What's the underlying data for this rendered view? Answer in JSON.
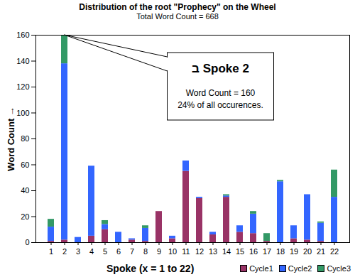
{
  "chart_data": {
    "type": "bar",
    "title": "Distribution of the root \"Prophecy\" on the Wheel",
    "subtitle": "Total Word Count = 668",
    "x_label": "Spoke (x = 1 to 22)",
    "y_label": "Word Count",
    "categories": [
      "1",
      "2",
      "3",
      "4",
      "5",
      "6",
      "7",
      "8",
      "9",
      "10",
      "11",
      "12",
      "13",
      "14",
      "15",
      "16",
      "17",
      "18",
      "19",
      "20",
      "21",
      "22"
    ],
    "series": [
      {
        "name": "Cycle1",
        "color": "#993366",
        "values": [
          1,
          2,
          0,
          5,
          10,
          0,
          2,
          1,
          24,
          3,
          55,
          34,
          6,
          35,
          8,
          7,
          1,
          0,
          3,
          2,
          1,
          0
        ]
      },
      {
        "name": "Cycle2",
        "color": "#3366ff",
        "values": [
          11,
          136,
          4,
          54,
          4,
          8,
          1,
          10,
          0,
          2,
          8,
          1,
          2,
          1,
          5,
          15,
          0,
          47,
          10,
          35,
          14,
          35
        ]
      },
      {
        "name": "Cycle3",
        "color": "#339966",
        "values": [
          6,
          22,
          0,
          0,
          3,
          0,
          0,
          2,
          0,
          0,
          0,
          0,
          0,
          1,
          0,
          2,
          6,
          1,
          0,
          0,
          1,
          21
        ]
      }
    ],
    "ylim": [
      0,
      160
    ],
    "yticks": [
      0,
      20,
      40,
      60,
      80,
      100,
      120,
      140,
      160
    ],
    "stacked": true,
    "grid": false,
    "legend": "bottom",
    "annotations": [
      {
        "x": "2",
        "y": 160,
        "lines": [
          "ב Spoke 2",
          "Word Count = 160",
          "24% of all occurences."
        ]
      }
    ]
  }
}
